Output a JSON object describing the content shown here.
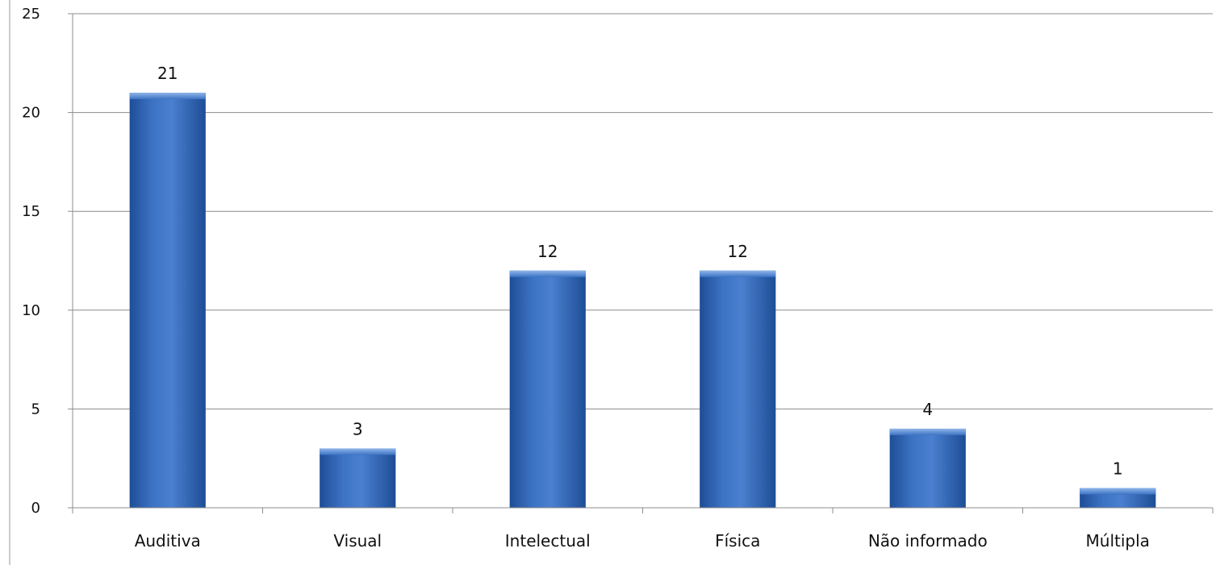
{
  "chart_data": {
    "type": "bar",
    "title": "",
    "xlabel": "",
    "ylabel": "",
    "categories": [
      "Auditiva",
      "Visual",
      "Intelectual",
      "Física",
      "Não informado",
      "Múltipla"
    ],
    "values": [
      21,
      3,
      12,
      12,
      4,
      1
    ],
    "data_labels": [
      "21",
      "3",
      "12",
      "12",
      "4",
      "1"
    ],
    "ylim": [
      0,
      25
    ],
    "yticks": [
      0,
      5,
      10,
      15,
      20,
      25
    ],
    "ytick_labels": [
      "0",
      "5",
      "10",
      "15",
      "20",
      "25"
    ],
    "grid": true,
    "legend": "none",
    "colors": {
      "bar_light": "#6f9fdf",
      "bar_mid": "#3d73c4",
      "bar_dark": "#1e4d96",
      "gridline": "#8c8c8c",
      "axis": "#8c8c8c",
      "text": "#111111"
    }
  }
}
